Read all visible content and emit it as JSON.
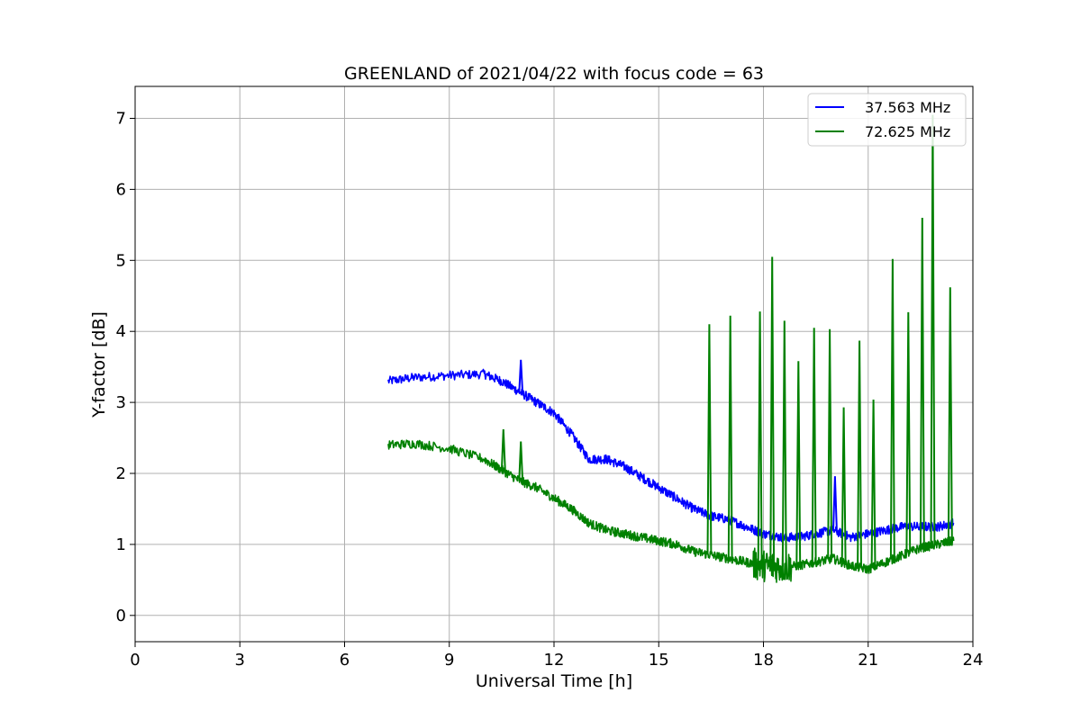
{
  "chart_data": {
    "type": "line",
    "title": "GREENLAND of 2021/04/22 with focus code = 63",
    "xlabel": "Universal Time [h]",
    "ylabel": "Y-factor [dB]",
    "xlim": [
      0,
      24
    ],
    "ylim": [
      -0.37,
      7.45
    ],
    "xticks": [
      0,
      3,
      6,
      9,
      12,
      15,
      18,
      21,
      24
    ],
    "yticks": [
      0,
      1,
      2,
      3,
      4,
      5,
      6,
      7
    ],
    "grid": true,
    "legend_position": "top-right",
    "series": [
      {
        "name": "37.563 MHz",
        "color": "#0000ff",
        "x": [
          7.25,
          8,
          9,
          10,
          10.5,
          11,
          11.5,
          12,
          12.5,
          13,
          13.5,
          14,
          14.5,
          15,
          15.5,
          16,
          16.5,
          17,
          17.5,
          18,
          18.5,
          19,
          19.5,
          20,
          20.5,
          21,
          21.5,
          22,
          22.5,
          23,
          23.45
        ],
        "y": [
          3.3,
          3.35,
          3.38,
          3.4,
          3.3,
          3.15,
          3.0,
          2.85,
          2.55,
          2.2,
          2.2,
          2.1,
          1.95,
          1.8,
          1.65,
          1.5,
          1.4,
          1.35,
          1.25,
          1.15,
          1.1,
          1.1,
          1.15,
          1.2,
          1.1,
          1.15,
          1.2,
          1.25,
          1.25,
          1.25,
          1.3
        ]
      },
      {
        "name": "72.625 MHz",
        "color": "#008000",
        "x": [
          7.25,
          8,
          9,
          10,
          10.5,
          11,
          11.5,
          12,
          12.5,
          13,
          13.5,
          14,
          14.5,
          15,
          15.5,
          16,
          16.5,
          17,
          17.5,
          18,
          18.5,
          19,
          19.5,
          20,
          20.5,
          21,
          21.5,
          22,
          22.5,
          23,
          23.45
        ],
        "y": [
          2.4,
          2.42,
          2.35,
          2.2,
          2.05,
          1.9,
          1.8,
          1.65,
          1.5,
          1.3,
          1.2,
          1.15,
          1.1,
          1.05,
          1.0,
          0.9,
          0.85,
          0.8,
          0.75,
          0.7,
          0.68,
          0.7,
          0.75,
          0.8,
          0.7,
          0.65,
          0.75,
          0.85,
          0.95,
          1.0,
          1.05
        ]
      }
    ],
    "spikes": [
      {
        "series": "72.625 MHz",
        "x": 16.45,
        "y": 4.1
      },
      {
        "series": "72.625 MHz",
        "x": 17.05,
        "y": 4.22
      },
      {
        "series": "72.625 MHz",
        "x": 17.9,
        "y": 4.28
      },
      {
        "series": "72.625 MHz",
        "x": 18.25,
        "y": 5.05
      },
      {
        "series": "72.625 MHz",
        "x": 18.6,
        "y": 4.15
      },
      {
        "series": "72.625 MHz",
        "x": 19.0,
        "y": 3.58
      },
      {
        "series": "72.625 MHz",
        "x": 19.45,
        "y": 4.05
      },
      {
        "series": "72.625 MHz",
        "x": 19.9,
        "y": 4.03
      },
      {
        "series": "72.625 MHz",
        "x": 20.3,
        "y": 2.93
      },
      {
        "series": "72.625 MHz",
        "x": 20.75,
        "y": 3.87
      },
      {
        "series": "72.625 MHz",
        "x": 21.15,
        "y": 3.04
      },
      {
        "series": "72.625 MHz",
        "x": 21.7,
        "y": 5.02
      },
      {
        "series": "72.625 MHz",
        "x": 22.15,
        "y": 4.27
      },
      {
        "series": "72.625 MHz",
        "x": 22.55,
        "y": 5.6
      },
      {
        "series": "72.625 MHz",
        "x": 22.85,
        "y": 7.05
      },
      {
        "series": "72.625 MHz",
        "x": 23.35,
        "y": 4.62
      },
      {
        "series": "72.625 MHz",
        "x": 10.55,
        "y": 2.62
      },
      {
        "series": "72.625 MHz",
        "x": 11.05,
        "y": 2.45
      },
      {
        "series": "37.563 MHz",
        "x": 11.05,
        "y": 3.6
      },
      {
        "series": "37.563 MHz",
        "x": 20.05,
        "y": 1.96
      }
    ]
  }
}
